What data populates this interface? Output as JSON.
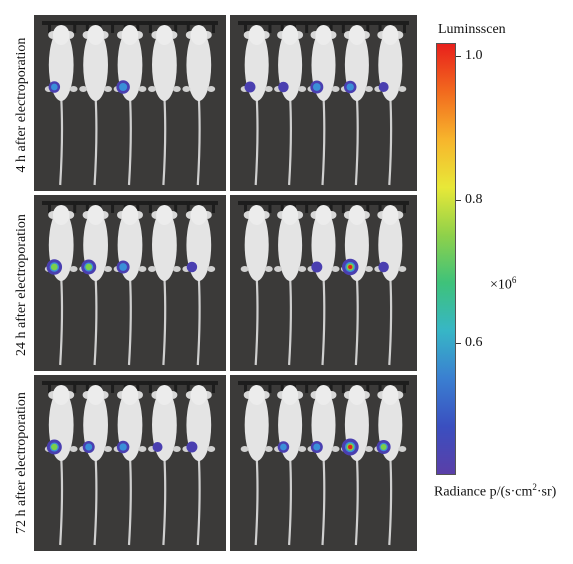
{
  "row_labels": [
    "4 h after electroporation",
    "24 h after electroporation",
    "72 h after electroporation"
  ],
  "colorbar": {
    "title": "Luminsscen",
    "ticks": [
      "1.0",
      "0.8",
      "0.6"
    ],
    "multiplier_base": "×10",
    "multiplier_exp": "6",
    "unit_prefix": "Radiance p/(s·cm",
    "unit_sup": "2",
    "unit_suffix": "·sr)",
    "colors": [
      "#e8201c",
      "#f26a1e",
      "#f7b52c",
      "#e8e838",
      "#8fd14a",
      "#3ec27a",
      "#37b6c6",
      "#3a7fd1",
      "#3a4fc0",
      "#5a3fa8"
    ]
  },
  "panels": [
    {
      "mice": 5,
      "signals": [
        0.35,
        0,
        0.55,
        0,
        0
      ]
    },
    {
      "mice": 5,
      "signals": [
        0.3,
        0.25,
        0.5,
        0.45,
        0.2
      ]
    },
    {
      "mice": 5,
      "signals": [
        0.75,
        0.7,
        0.5,
        0,
        0.25
      ]
    },
    {
      "mice": 5,
      "signals": [
        0,
        0,
        0.3,
        0.85,
        0.25
      ]
    },
    {
      "mice": 5,
      "signals": [
        0.7,
        0.4,
        0.45,
        0.2,
        0.3
      ]
    },
    {
      "mice": 5,
      "signals": [
        0,
        0.35,
        0.4,
        0.9,
        0.6
      ]
    }
  ]
}
